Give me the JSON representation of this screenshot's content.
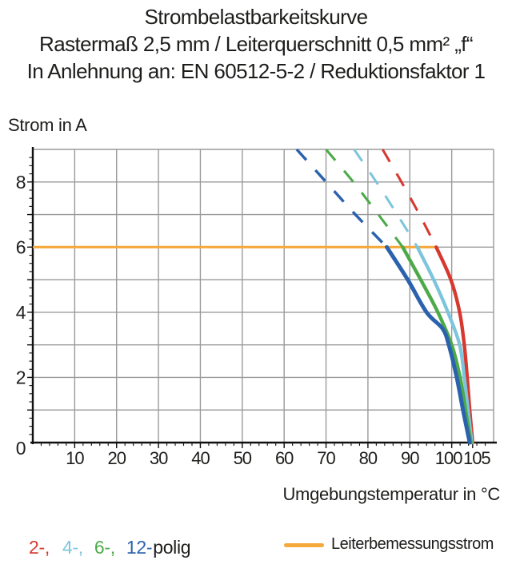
{
  "title": {
    "line1": "Strombelastbarkeitskurve",
    "line2": "Rastermaß 2,5 mm / Leiterquerschnitt 0,5 mm² „f“",
    "line3": "In Anlehnung an: EN 60512-5-2 / Reduktionsfaktor 1"
  },
  "chart_data": {
    "type": "line",
    "ylabel": "Strom in A",
    "xlabel": "Umgebungstemperatur in °C",
    "xlim": [
      0,
      110
    ],
    "ylim": [
      0,
      9
    ],
    "x_grid_step": 10,
    "y_grid_step": 1,
    "x_minor_step": 2,
    "y_minor_step": 0.25,
    "x_ticks": [
      {
        "v": 10
      },
      {
        "v": 20
      },
      {
        "v": 30
      },
      {
        "v": 40
      },
      {
        "v": 50
      },
      {
        "v": 60
      },
      {
        "v": 70
      },
      {
        "v": 80
      },
      {
        "v": 90
      },
      {
        "v": 100,
        "dx": -4
      },
      {
        "v": 105,
        "dx": 5
      }
    ],
    "y_ticks": [
      0,
      2,
      4,
      6,
      8
    ],
    "grid_color": "#9a9a9a",
    "axis_color": "#111111",
    "dash_split_current": 6,
    "rated_current_line": {
      "y": 6,
      "x_start": 0,
      "x_end": 96.3,
      "color": "#f5a93c",
      "label": "Leiterbemessungsstrom"
    },
    "series": [
      {
        "name": "2-polig",
        "color": "#d6392f",
        "width": 4.4,
        "points": [
          [
            83.5,
            9
          ],
          [
            88,
            8
          ],
          [
            92.3,
            7
          ],
          [
            96.3,
            6
          ],
          [
            99.8,
            5
          ],
          [
            101.9,
            4
          ],
          [
            103,
            3
          ],
          [
            103.7,
            2
          ],
          [
            104.3,
            1
          ],
          [
            105,
            0
          ]
        ]
      },
      {
        "name": "4-polig",
        "color": "#7cc5dc",
        "width": 4.3,
        "points": [
          [
            76.7,
            9
          ],
          [
            82,
            8
          ],
          [
            87,
            7
          ],
          [
            91.8,
            6
          ],
          [
            95.7,
            5
          ],
          [
            99.1,
            4
          ],
          [
            101.9,
            3
          ],
          [
            103,
            2
          ],
          [
            103.9,
            1
          ],
          [
            104.8,
            0
          ]
        ]
      },
      {
        "name": "6-polig",
        "color": "#4caa49",
        "width": 4.4,
        "points": [
          [
            70,
            9
          ],
          [
            76.5,
            8
          ],
          [
            82.5,
            7
          ],
          [
            88.3,
            6
          ],
          [
            92.6,
            5
          ],
          [
            96.7,
            4
          ],
          [
            100,
            3
          ],
          [
            102,
            2
          ],
          [
            103.3,
            1
          ],
          [
            104.6,
            0
          ]
        ]
      },
      {
        "name": "12-polig",
        "color": "#2b62ae",
        "width": 5,
        "points": [
          [
            63,
            9
          ],
          [
            70,
            8
          ],
          [
            77,
            7
          ],
          [
            84.5,
            6
          ],
          [
            89.5,
            5
          ],
          [
            94,
            4
          ],
          [
            97.8,
            3.5
          ],
          [
            99.3,
            3
          ],
          [
            101.2,
            2
          ],
          [
            102.7,
            1
          ],
          [
            104.3,
            0
          ]
        ]
      }
    ]
  },
  "legend": {
    "poles_items": [
      {
        "label": "2-,",
        "color": "#d6392f",
        "gap": 16
      },
      {
        "label": "4-,",
        "color": "#7cc5dc",
        "gap": 14
      },
      {
        "label": "6-,",
        "color": "#4caa49",
        "gap": 14
      },
      {
        "label": "12-",
        "color": "#2b62ae",
        "gap": 1
      },
      {
        "label": "polig",
        "color": "#1d1d1b",
        "gap": 0
      }
    ],
    "rated": {
      "label": "Leiterbemessungsstrom",
      "color": "#f5a93c"
    }
  }
}
